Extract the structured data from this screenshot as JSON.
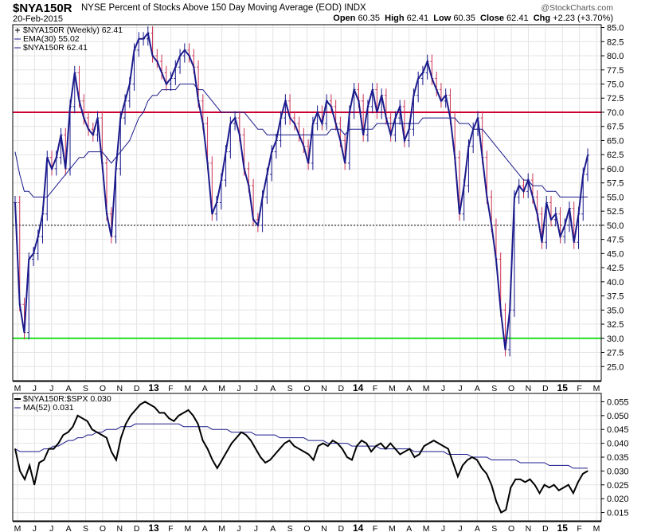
{
  "header": {
    "symbol": "$NYA150R",
    "description": "NYSE Percent of Stocks Above 150 Day Moving Average (EOD)  INDX",
    "date": "20-Feb-2015",
    "brand": "@StockCharts.com",
    "quote": {
      "open_label": "Open",
      "open": "60.35",
      "high_label": "High",
      "high": "62.41",
      "low_label": "Low",
      "low": "60.35",
      "close_label": "Close",
      "close": "62.41",
      "chg_label": "Chg",
      "chg": "+2.23 (+3.70%)"
    }
  },
  "colors": {
    "price": "#1a1a8c",
    "ema": "#1a1a8c",
    "down_bar": "#cc3355",
    "overbought": "#cc0033",
    "oversold": "#22dd22",
    "midline": "#000000",
    "ratio": "#000000",
    "grid": "#e4e4e4"
  },
  "chart_data": [
    {
      "type": "line",
      "title": "$NYA150R",
      "legend": [
        {
          "label": "$NYA150R (Weekly) 62.41",
          "marker": "cross"
        },
        {
          "label": "EMA(30) 55.02",
          "marker": "line"
        },
        {
          "label": "$NYA150R 62.41",
          "marker": "line"
        }
      ],
      "legend_position": "top-left",
      "x_ticks": [
        "M",
        "J",
        "J",
        "A",
        "S",
        "O",
        "N",
        "D",
        "13",
        "F",
        "M",
        "A",
        "M",
        "J",
        "J",
        "A",
        "S",
        "O",
        "N",
        "D",
        "14",
        "F",
        "M",
        "A",
        "M",
        "J",
        "J",
        "A",
        "S",
        "O",
        "N",
        "D",
        "15",
        "F",
        "M"
      ],
      "ylim": [
        22.5,
        85.5
      ],
      "y_ticks": [
        "85.0",
        "82.5",
        "80.0",
        "77.5",
        "75.0",
        "72.5",
        "70.0",
        "67.5",
        "65.0",
        "62.5",
        "60.0",
        "57.5",
        "55.0",
        "52.5",
        "50.0",
        "47.5",
        "45.0",
        "42.5",
        "40.0",
        "37.5",
        "35.0",
        "32.5",
        "30.0",
        "27.5",
        "25.0"
      ],
      "reference_lines": [
        {
          "value": 70,
          "style": "solid",
          "color_key": "overbought"
        },
        {
          "value": 50,
          "style": "dotted",
          "color_key": "midline"
        },
        {
          "value": 30,
          "style": "solid",
          "color_key": "oversold"
        }
      ],
      "grid": true,
      "series": [
        {
          "name": "$NYA150R",
          "style": "line",
          "values": [
            54,
            36,
            31,
            44,
            45,
            48,
            52,
            62,
            60,
            62,
            66,
            60,
            71,
            77,
            72,
            69,
            67,
            66,
            69,
            61,
            52,
            48,
            60,
            69,
            72,
            75,
            81,
            83,
            83,
            84,
            80,
            79,
            77,
            75,
            76,
            78,
            80,
            81,
            80,
            78,
            72,
            68,
            61,
            52,
            54,
            58,
            63,
            68,
            69,
            66,
            60,
            57,
            51,
            50,
            55,
            59,
            63,
            65,
            69,
            72,
            69,
            68,
            66,
            64,
            61,
            68,
            70,
            68,
            72,
            71,
            68,
            65,
            61,
            70,
            74,
            72,
            66,
            71,
            74,
            70,
            73,
            69,
            66,
            69,
            71,
            65,
            67,
            73,
            76,
            77,
            79,
            76,
            74,
            72,
            73,
            69,
            62,
            52,
            57,
            64,
            67,
            69,
            62,
            55,
            50,
            44,
            35,
            28,
            35,
            55,
            57,
            56,
            58,
            55,
            52,
            47,
            54,
            51,
            52,
            48,
            50,
            53,
            47,
            52,
            59,
            62.41
          ]
        },
        {
          "name": "EMA(30)",
          "style": "line",
          "values": [
            63,
            59,
            56,
            56,
            55,
            55,
            55,
            55,
            56,
            57,
            58,
            59,
            60,
            61,
            62,
            62,
            63,
            63,
            63,
            63,
            62,
            61,
            62,
            63,
            64,
            65,
            67,
            69,
            70,
            72,
            73,
            73,
            74,
            74,
            74,
            74,
            75,
            75,
            75,
            75,
            74,
            74,
            73,
            72,
            71,
            70,
            70,
            70,
            70,
            70,
            70,
            69,
            68,
            67,
            67,
            66,
            66,
            66,
            66,
            66,
            66,
            66,
            66,
            66,
            66,
            66,
            66,
            66,
            66,
            67,
            67,
            67,
            66,
            67,
            67,
            67,
            67,
            67,
            67,
            68,
            68,
            68,
            68,
            68,
            68,
            68,
            68,
            68,
            68,
            69,
            69,
            69,
            69,
            69,
            69,
            69,
            69,
            68,
            68,
            68,
            67,
            67,
            67,
            66,
            65,
            64,
            63,
            62,
            61,
            60,
            59,
            58,
            58,
            57,
            57,
            57,
            56,
            56,
            56,
            55,
            55,
            55,
            55,
            55,
            55,
            55.02
          ]
        }
      ]
    },
    {
      "type": "line",
      "title": "$NYA150R:$SPX",
      "legend": [
        {
          "label": "$NYA150R:$SPX 0.030",
          "marker": "line"
        },
        {
          "label": "MA(52) 0.031",
          "marker": "line"
        }
      ],
      "legend_position": "top-left",
      "x_ticks": [
        "M",
        "J",
        "J",
        "A",
        "S",
        "O",
        "N",
        "D",
        "13",
        "F",
        "M",
        "A",
        "M",
        "J",
        "J",
        "A",
        "S",
        "O",
        "N",
        "D",
        "14",
        "F",
        "M",
        "A",
        "M",
        "J",
        "J",
        "A",
        "S",
        "O",
        "N",
        "D",
        "15",
        "F",
        "M"
      ],
      "ylim": [
        0.012,
        0.058
      ],
      "y_ticks": [
        "0.055",
        "0.050",
        "0.045",
        "0.040",
        "0.035",
        "0.030",
        "0.025",
        "0.020",
        "0.015"
      ],
      "grid": true,
      "series": [
        {
          "name": "$NYA150R:$SPX",
          "style": "line",
          "values": [
            0.038,
            0.03,
            0.027,
            0.032,
            0.025,
            0.033,
            0.034,
            0.038,
            0.038,
            0.04,
            0.043,
            0.044,
            0.046,
            0.05,
            0.049,
            0.048,
            0.045,
            0.044,
            0.043,
            0.042,
            0.037,
            0.034,
            0.042,
            0.047,
            0.05,
            0.052,
            0.054,
            0.055,
            0.054,
            0.053,
            0.051,
            0.051,
            0.049,
            0.048,
            0.05,
            0.051,
            0.052,
            0.05,
            0.047,
            0.041,
            0.038,
            0.034,
            0.031,
            0.034,
            0.037,
            0.04,
            0.042,
            0.044,
            0.043,
            0.041,
            0.038,
            0.035,
            0.033,
            0.034,
            0.036,
            0.038,
            0.04,
            0.041,
            0.039,
            0.038,
            0.037,
            0.036,
            0.034,
            0.039,
            0.04,
            0.039,
            0.041,
            0.04,
            0.038,
            0.035,
            0.034,
            0.039,
            0.041,
            0.04,
            0.037,
            0.039,
            0.04,
            0.038,
            0.04,
            0.038,
            0.036,
            0.037,
            0.038,
            0.035,
            0.036,
            0.039,
            0.04,
            0.041,
            0.04,
            0.039,
            0.038,
            0.033,
            0.028,
            0.032,
            0.034,
            0.035,
            0.034,
            0.031,
            0.029,
            0.025,
            0.019,
            0.015,
            0.016,
            0.024,
            0.027,
            0.027,
            0.026,
            0.027,
            0.025,
            0.022,
            0.025,
            0.024,
            0.025,
            0.023,
            0.024,
            0.025,
            0.022,
            0.026,
            0.029,
            0.03
          ]
        },
        {
          "name": "MA(52)",
          "style": "line",
          "values": [
            0.038,
            0.037,
            0.037,
            0.037,
            0.037,
            0.037,
            0.038,
            0.038,
            0.039,
            0.039,
            0.04,
            0.041,
            0.041,
            0.042,
            0.042,
            0.043,
            0.043,
            0.044,
            0.044,
            0.045,
            0.045,
            0.045,
            0.046,
            0.046,
            0.046,
            0.047,
            0.047,
            0.047,
            0.047,
            0.047,
            0.047,
            0.047,
            0.047,
            0.047,
            0.047,
            0.046,
            0.046,
            0.046,
            0.046,
            0.046,
            0.046,
            0.045,
            0.045,
            0.045,
            0.045,
            0.044,
            0.044,
            0.044,
            0.044,
            0.044,
            0.043,
            0.043,
            0.043,
            0.043,
            0.043,
            0.042,
            0.042,
            0.042,
            0.042,
            0.042,
            0.042,
            0.041,
            0.041,
            0.041,
            0.041,
            0.04,
            0.04,
            0.04,
            0.04,
            0.04,
            0.039,
            0.039,
            0.039,
            0.039,
            0.039,
            0.039,
            0.038,
            0.038,
            0.038,
            0.038,
            0.038,
            0.038,
            0.038,
            0.037,
            0.037,
            0.037,
            0.037,
            0.037,
            0.037,
            0.037,
            0.036,
            0.036,
            0.036,
            0.036,
            0.036,
            0.035,
            0.035,
            0.035,
            0.035,
            0.034,
            0.034,
            0.034,
            0.034,
            0.034,
            0.034,
            0.033,
            0.033,
            0.033,
            0.033,
            0.033,
            0.033,
            0.032,
            0.032,
            0.032,
            0.032,
            0.032,
            0.031,
            0.031,
            0.031,
            0.031
          ]
        }
      ]
    }
  ]
}
